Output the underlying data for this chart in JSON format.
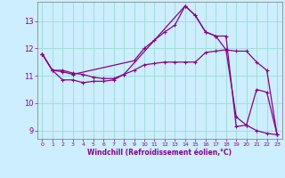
{
  "xlabel": "Windchill (Refroidissement éolien,°C)",
  "background_color": "#cceeff",
  "grid_color": "#99ddcc",
  "line_color": "#880088",
  "xlim": [
    -0.5,
    23.5
  ],
  "ylim": [
    8.7,
    13.7
  ],
  "xticks": [
    0,
    1,
    2,
    3,
    4,
    5,
    6,
    7,
    8,
    9,
    10,
    11,
    12,
    13,
    14,
    15,
    16,
    17,
    18,
    19,
    20,
    21,
    22,
    23
  ],
  "yticks": [
    9,
    10,
    11,
    12,
    13
  ],
  "line1_x": [
    0,
    1,
    2,
    3,
    4,
    5,
    6,
    7,
    8,
    9,
    10,
    11,
    12,
    13,
    14,
    15,
    16,
    17,
    18,
    19,
    20,
    21,
    22,
    23
  ],
  "line1_y": [
    11.8,
    11.2,
    11.2,
    11.1,
    11.05,
    10.95,
    10.9,
    10.9,
    11.05,
    11.2,
    11.4,
    11.45,
    11.5,
    11.5,
    11.5,
    11.5,
    11.85,
    11.9,
    11.95,
    11.9,
    11.9,
    11.5,
    11.2,
    8.85
  ],
  "line2_x": [
    0,
    1,
    2,
    3,
    4,
    5,
    6,
    7,
    8,
    14,
    15,
    16,
    17,
    18,
    19,
    20,
    21,
    22,
    23
  ],
  "line2_y": [
    11.8,
    11.2,
    10.85,
    10.85,
    10.75,
    10.8,
    10.8,
    10.85,
    11.05,
    13.55,
    13.2,
    12.6,
    12.45,
    12.45,
    9.15,
    9.2,
    10.5,
    10.4,
    8.85
  ],
  "line3_x": [
    0,
    1,
    2,
    3,
    9,
    10,
    11,
    12,
    13,
    14,
    15,
    16,
    17,
    18,
    19,
    20,
    21,
    22,
    23
  ],
  "line3_y": [
    11.8,
    11.2,
    11.15,
    11.05,
    11.55,
    12.0,
    12.3,
    12.6,
    12.85,
    13.55,
    13.2,
    12.6,
    12.45,
    11.95,
    9.5,
    9.2,
    9.0,
    8.9,
    8.85
  ]
}
